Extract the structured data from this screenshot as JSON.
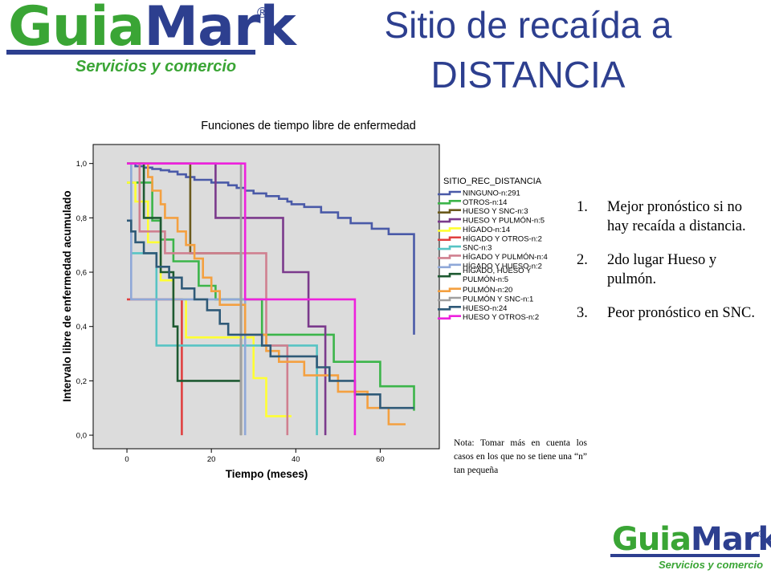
{
  "logo": {
    "word_a": "Guia",
    "word_b": "Mark",
    "registered": "®",
    "tagline": "Servicios y comercio"
  },
  "slide": {
    "title": "Sitio de recaída a DISTANCIA",
    "bullets": [
      {
        "num": "1.",
        "text": "Mejor pronóstico si no hay recaída a distancia."
      },
      {
        "num": "2.",
        "text": "2do lugar Hueso y pulmón."
      },
      {
        "num": "3.",
        "text": "Peor pronóstico en SNC."
      }
    ],
    "note": "Nota: Tomar más en cuenta los casos en los que no se tiene una “n” tan pequeña"
  },
  "colors": {
    "title": "#2d3f8f",
    "logo_green": "#3aa535",
    "logo_blue": "#2d3f8f",
    "plot_bg": "#dcdcdc"
  },
  "chart_data": {
    "type": "line",
    "step": true,
    "title": "Funciones de tiempo libre de enfermedad",
    "xlabel": "Tiempo (meses)",
    "ylabel": "Intervalo libre de enfermedad acumulado",
    "xlim": [
      -8,
      74
    ],
    "ylim": [
      -0.05,
      1.07
    ],
    "xticks": [
      0,
      20,
      40,
      60
    ],
    "yticks": [
      0,
      0.2,
      0.4,
      0.6,
      0.8,
      1.0
    ],
    "xtick_labels": [
      "0",
      "20",
      "40",
      "60"
    ],
    "ytick_labels": [
      "0,0",
      "0,2",
      "0,4",
      "0,6",
      "0,8",
      "1,0"
    ],
    "grid": false,
    "legend_title": "SITIO_REC_DISTANCIA",
    "legend_position": "right",
    "series": [
      {
        "name": "NINGUNO-n:291",
        "color": "#4a5aa8",
        "points": [
          [
            0,
            1.0
          ],
          [
            2,
            1.0
          ],
          [
            2,
            0.99
          ],
          [
            4,
            0.99
          ],
          [
            4,
            0.985
          ],
          [
            6,
            0.985
          ],
          [
            6,
            0.98
          ],
          [
            8,
            0.98
          ],
          [
            8,
            0.975
          ],
          [
            10,
            0.975
          ],
          [
            10,
            0.97
          ],
          [
            12,
            0.97
          ],
          [
            12,
            0.96
          ],
          [
            14,
            0.96
          ],
          [
            14,
            0.95
          ],
          [
            16,
            0.95
          ],
          [
            16,
            0.94
          ],
          [
            20,
            0.94
          ],
          [
            20,
            0.93
          ],
          [
            24,
            0.93
          ],
          [
            24,
            0.92
          ],
          [
            26,
            0.92
          ],
          [
            26,
            0.91
          ],
          [
            28,
            0.91
          ],
          [
            28,
            0.9
          ],
          [
            30,
            0.9
          ],
          [
            30,
            0.89
          ],
          [
            33,
            0.89
          ],
          [
            33,
            0.88
          ],
          [
            36,
            0.88
          ],
          [
            36,
            0.87
          ],
          [
            38,
            0.87
          ],
          [
            38,
            0.86
          ],
          [
            39,
            0.86
          ],
          [
            39,
            0.85
          ],
          [
            42,
            0.85
          ],
          [
            42,
            0.84
          ],
          [
            46,
            0.84
          ],
          [
            46,
            0.82
          ],
          [
            50,
            0.82
          ],
          [
            50,
            0.8
          ],
          [
            53,
            0.8
          ],
          [
            53,
            0.78
          ],
          [
            58,
            0.78
          ],
          [
            58,
            0.76
          ],
          [
            62,
            0.76
          ],
          [
            62,
            0.74
          ],
          [
            68,
            0.74
          ],
          [
            68,
            0.37
          ]
        ]
      },
      {
        "name": "OTROS-n:14",
        "color": "#3cb54a",
        "points": [
          [
            0,
            0.93
          ],
          [
            6,
            0.93
          ],
          [
            6,
            0.79
          ],
          [
            8,
            0.79
          ],
          [
            8,
            0.72
          ],
          [
            11,
            0.72
          ],
          [
            11,
            0.64
          ],
          [
            17,
            0.64
          ],
          [
            17,
            0.55
          ],
          [
            21,
            0.55
          ],
          [
            21,
            0.5
          ],
          [
            32,
            0.5
          ],
          [
            32,
            0.37
          ],
          [
            49,
            0.37
          ],
          [
            49,
            0.27
          ],
          [
            60,
            0.27
          ],
          [
            60,
            0.18
          ],
          [
            68,
            0.18
          ],
          [
            68,
            0.09
          ]
        ]
      },
      {
        "name": "HUESO Y SNC-n:3",
        "color": "#6b5a1c",
        "points": [
          [
            0,
            1.0
          ],
          [
            15,
            1.0
          ],
          [
            15,
            0.67
          ],
          [
            27,
            0.67
          ],
          [
            27,
            0.0
          ]
        ]
      },
      {
        "name": "HUESO Y PULMÓN-n:5",
        "color": "#7b3a8c",
        "points": [
          [
            0,
            1.0
          ],
          [
            21,
            1.0
          ],
          [
            21,
            0.8
          ],
          [
            37,
            0.8
          ],
          [
            37,
            0.6
          ],
          [
            43,
            0.6
          ],
          [
            43,
            0.4
          ],
          [
            47,
            0.4
          ],
          [
            47,
            0.0
          ]
        ]
      },
      {
        "name": "HÍGADO-n:14",
        "color": "#ffff33",
        "points": [
          [
            0,
            0.93
          ],
          [
            2,
            0.93
          ],
          [
            2,
            0.86
          ],
          [
            5,
            0.86
          ],
          [
            5,
            0.71
          ],
          [
            8,
            0.71
          ],
          [
            8,
            0.57
          ],
          [
            11,
            0.57
          ],
          [
            11,
            0.5
          ],
          [
            14,
            0.5
          ],
          [
            14,
            0.36
          ],
          [
            30,
            0.36
          ],
          [
            30,
            0.21
          ],
          [
            33,
            0.21
          ],
          [
            33,
            0.07
          ],
          [
            39,
            0.07
          ]
        ]
      },
      {
        "name": "HÍGADO Y OTROS-n:2",
        "color": "#e04040",
        "points": [
          [
            0,
            0.5
          ],
          [
            13,
            0.5
          ],
          [
            13,
            0.0
          ]
        ]
      },
      {
        "name": "SNC-n:3",
        "color": "#57c4c4",
        "points": [
          [
            0,
            1.0
          ],
          [
            1,
            1.0
          ],
          [
            1,
            0.67
          ],
          [
            7,
            0.67
          ],
          [
            7,
            0.33
          ],
          [
            45,
            0.33
          ],
          [
            45,
            0.0
          ]
        ]
      },
      {
        "name": "HÍGADO Y PULMÓN-n:4",
        "color": "#d08090",
        "points": [
          [
            0,
            1.0
          ],
          [
            3,
            1.0
          ],
          [
            3,
            0.75
          ],
          [
            9,
            0.75
          ],
          [
            9,
            0.67
          ],
          [
            33,
            0.67
          ],
          [
            33,
            0.33
          ],
          [
            38,
            0.33
          ],
          [
            38,
            0.0
          ]
        ]
      },
      {
        "name": "HÍGADO Y HUESO-n:2",
        "color": "#8fa8d8",
        "points": [
          [
            0,
            1.0
          ],
          [
            1,
            1.0
          ],
          [
            1,
            0.5
          ],
          [
            28,
            0.5
          ],
          [
            28,
            0.0
          ]
        ]
      },
      {
        "name": "HÍGADO, HUESO Y PULMÓN-n:5",
        "color": "#1e5a32",
        "points": [
          [
            0,
            1.0
          ],
          [
            4,
            1.0
          ],
          [
            4,
            0.8
          ],
          [
            8,
            0.8
          ],
          [
            8,
            0.6
          ],
          [
            11,
            0.6
          ],
          [
            11,
            0.4
          ],
          [
            12,
            0.4
          ],
          [
            12,
            0.2
          ],
          [
            27,
            0.2
          ]
        ]
      },
      {
        "name": "PULMÓN-n:20",
        "color": "#f4a040",
        "points": [
          [
            0,
            1.0
          ],
          [
            5,
            1.0
          ],
          [
            5,
            0.95
          ],
          [
            6,
            0.95
          ],
          [
            6,
            0.9
          ],
          [
            8,
            0.9
          ],
          [
            8,
            0.85
          ],
          [
            9,
            0.85
          ],
          [
            9,
            0.8
          ],
          [
            12,
            0.8
          ],
          [
            12,
            0.75
          ],
          [
            14,
            0.75
          ],
          [
            14,
            0.7
          ],
          [
            16,
            0.7
          ],
          [
            16,
            0.65
          ],
          [
            18,
            0.65
          ],
          [
            18,
            0.58
          ],
          [
            20,
            0.58
          ],
          [
            20,
            0.53
          ],
          [
            22,
            0.53
          ],
          [
            22,
            0.48
          ],
          [
            28,
            0.48
          ],
          [
            28,
            0.37
          ],
          [
            33,
            0.37
          ],
          [
            33,
            0.31
          ],
          [
            36,
            0.31
          ],
          [
            36,
            0.27
          ],
          [
            42,
            0.27
          ],
          [
            42,
            0.22
          ],
          [
            50,
            0.22
          ],
          [
            50,
            0.16
          ],
          [
            57,
            0.16
          ],
          [
            57,
            0.1
          ],
          [
            62,
            0.1
          ],
          [
            62,
            0.04
          ],
          [
            66,
            0.04
          ]
        ]
      },
      {
        "name": "PULMÓN Y SNC-n:1",
        "color": "#a0a0a0",
        "points": [
          [
            0,
            1.0
          ],
          [
            27,
            1.0
          ],
          [
            27,
            0.0
          ]
        ]
      },
      {
        "name": "HUESO-n:24",
        "color": "#2f5a78",
        "points": [
          [
            0,
            0.79
          ],
          [
            1,
            0.79
          ],
          [
            1,
            0.75
          ],
          [
            2,
            0.75
          ],
          [
            2,
            0.71
          ],
          [
            4,
            0.71
          ],
          [
            4,
            0.67
          ],
          [
            7,
            0.67
          ],
          [
            7,
            0.62
          ],
          [
            10,
            0.62
          ],
          [
            10,
            0.58
          ],
          [
            13,
            0.58
          ],
          [
            13,
            0.54
          ],
          [
            16,
            0.54
          ],
          [
            16,
            0.5
          ],
          [
            19,
            0.5
          ],
          [
            19,
            0.46
          ],
          [
            22,
            0.46
          ],
          [
            22,
            0.41
          ],
          [
            24,
            0.41
          ],
          [
            24,
            0.37
          ],
          [
            32,
            0.37
          ],
          [
            32,
            0.33
          ],
          [
            34,
            0.33
          ],
          [
            34,
            0.29
          ],
          [
            45,
            0.29
          ],
          [
            45,
            0.25
          ],
          [
            48,
            0.25
          ],
          [
            48,
            0.2
          ],
          [
            54,
            0.2
          ],
          [
            54,
            0.15
          ],
          [
            60,
            0.15
          ],
          [
            60,
            0.1
          ],
          [
            68,
            0.1
          ]
        ]
      },
      {
        "name": "HUESO Y OTROS-n:2",
        "color": "#ee22dd",
        "points": [
          [
            0,
            1.0
          ],
          [
            28,
            1.0
          ],
          [
            28,
            0.5
          ],
          [
            54,
            0.5
          ],
          [
            54,
            0.0
          ]
        ]
      }
    ]
  }
}
